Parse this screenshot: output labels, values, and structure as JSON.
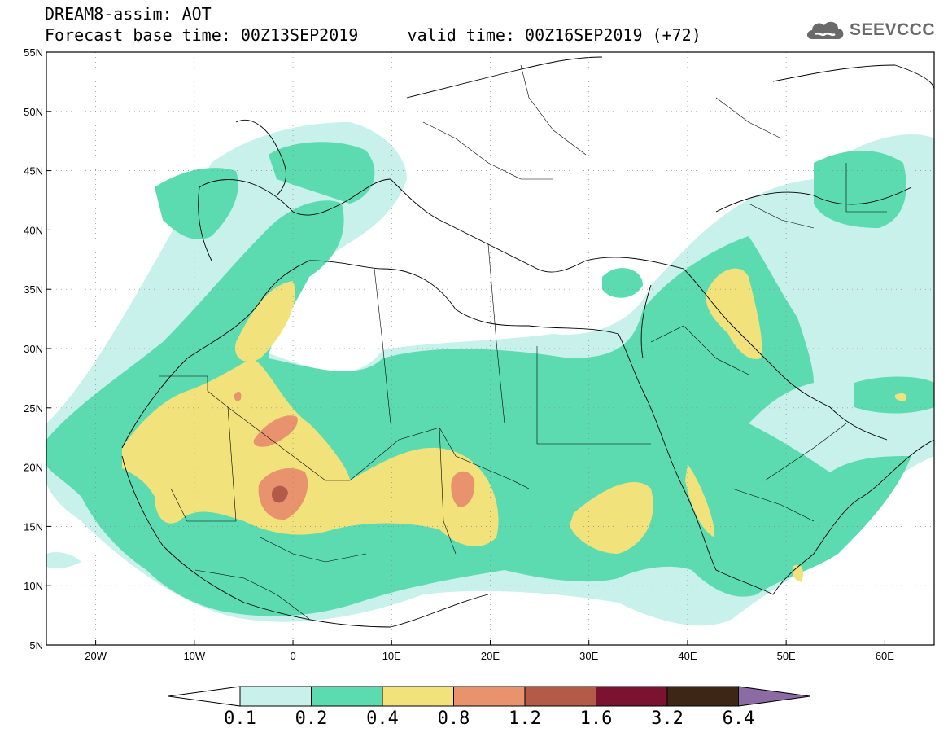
{
  "header": {
    "title": "DREAM8-assim: AOT",
    "base_label": "Forecast base time: 00Z13SEP2019",
    "valid_label": "valid time: 00Z16SEP2019 (+72)"
  },
  "logo": {
    "text": "SEEVCCC",
    "icon": "cloud-icon"
  },
  "map": {
    "lon_range": [
      -25,
      65
    ],
    "lat_range": [
      5,
      55
    ],
    "lon_ticks": [
      {
        "value": -20,
        "label": "20W"
      },
      {
        "value": -10,
        "label": "10W"
      },
      {
        "value": 0,
        "label": "0"
      },
      {
        "value": 10,
        "label": "10E"
      },
      {
        "value": 20,
        "label": "20E"
      },
      {
        "value": 30,
        "label": "30E"
      },
      {
        "value": 40,
        "label": "40E"
      },
      {
        "value": 50,
        "label": "50E"
      },
      {
        "value": 60,
        "label": "60E"
      }
    ],
    "lat_ticks": [
      {
        "value": 5,
        "label": "5N"
      },
      {
        "value": 10,
        "label": "10N"
      },
      {
        "value": 15,
        "label": "15N"
      },
      {
        "value": 20,
        "label": "20N"
      },
      {
        "value": 25,
        "label": "25N"
      },
      {
        "value": 30,
        "label": "30N"
      },
      {
        "value": 35,
        "label": "35N"
      },
      {
        "value": 40,
        "label": "40N"
      },
      {
        "value": 45,
        "label": "45N"
      },
      {
        "value": 50,
        "label": "50N"
      },
      {
        "value": 55,
        "label": "55N"
      }
    ],
    "grid": "dotted"
  },
  "colorbar": {
    "levels": [
      "0.1",
      "0.2",
      "0.4",
      "0.8",
      "1.2",
      "1.6",
      "3.2",
      "6.4"
    ],
    "colors": [
      "#ffffff",
      "#c7f1ea",
      "#5cdbb1",
      "#f2e27c",
      "#e8936d",
      "#b35a48",
      "#7a1230",
      "#3e2617",
      "#8c6aa3"
    ]
  }
}
